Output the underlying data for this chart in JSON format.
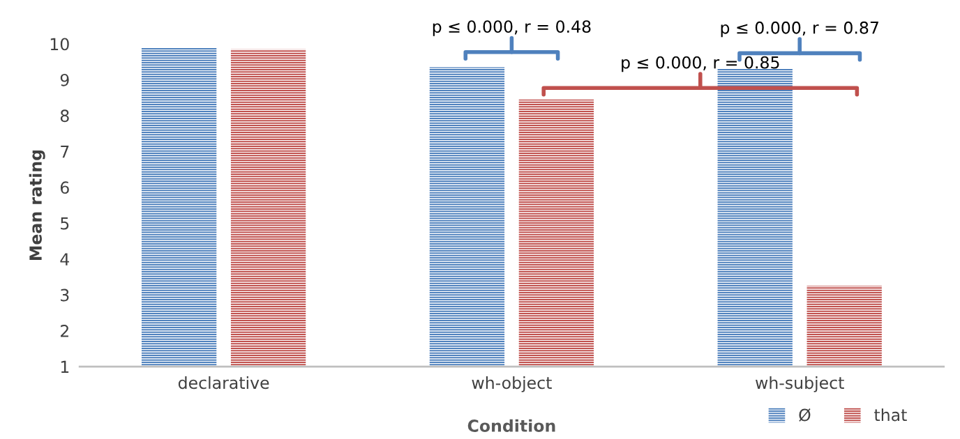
{
  "chart_data": {
    "type": "bar",
    "xlabel": "Condition",
    "ylabel": "Mean rating",
    "categories": [
      "declarative",
      "wh-object",
      "wh-subject"
    ],
    "series": [
      {
        "name": "Ø",
        "color": "#4f81bd",
        "values": [
          9.9,
          9.35,
          9.3
        ]
      },
      {
        "name": "that",
        "color": "#c0504d",
        "values": [
          9.85,
          8.45,
          3.25
        ]
      }
    ],
    "ylim": [
      1,
      10
    ],
    "yticks": [
      1,
      2,
      3,
      4,
      5,
      6,
      7,
      8,
      9,
      10
    ],
    "grid": false,
    "legend": "bottom right",
    "annotations": [
      "p ≤ 0.000, r = 0.48",
      "p ≤ 0.000, r = 0.85",
      "p ≤ 0.000, r = 0.87"
    ]
  }
}
